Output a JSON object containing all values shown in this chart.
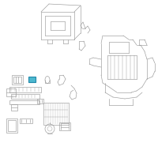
{
  "background_color": "#ffffff",
  "line_color": "#999999",
  "highlight_fill": "#4db8cf",
  "highlight_edge": "#2288aa",
  "fig_width": 2.0,
  "fig_height": 2.0,
  "dpi": 100,
  "lw": 0.45
}
